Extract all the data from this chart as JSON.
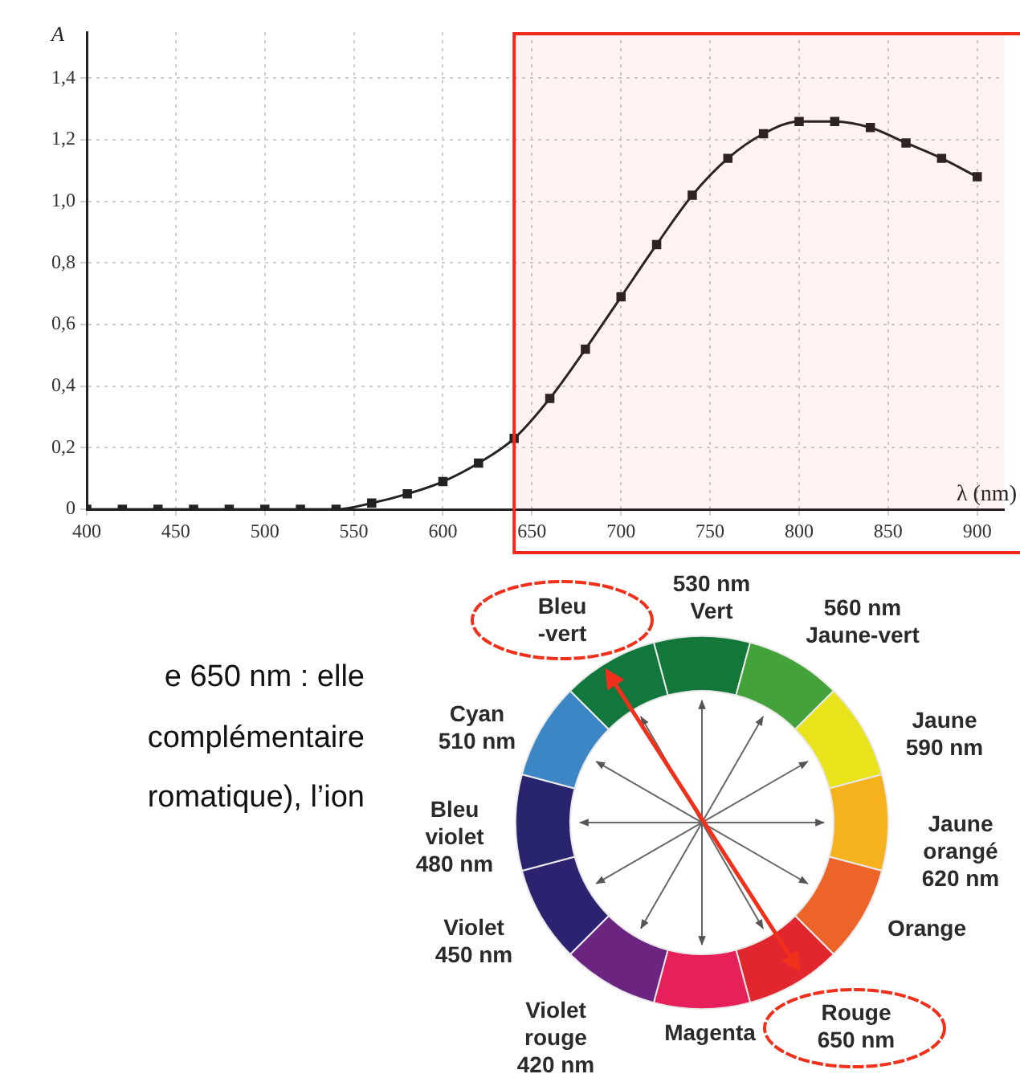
{
  "chart_data": {
    "type": "line",
    "xlabel": "λ (nm)",
    "ylabel": "A",
    "x": [
      400,
      420,
      440,
      460,
      480,
      500,
      520,
      540,
      560,
      580,
      600,
      620,
      640,
      660,
      680,
      700,
      720,
      740,
      760,
      780,
      800,
      820,
      840,
      860,
      880,
      900
    ],
    "series": [
      {
        "color": "#222222",
        "values": [
          0,
          0,
          0,
          0,
          0,
          0,
          0,
          0,
          0.02,
          0.05,
          0.09,
          0.15,
          0.23,
          0.36,
          0.52,
          0.69,
          0.86,
          1.02,
          1.14,
          1.22,
          1.26,
          1.26,
          1.24,
          1.19,
          1.14,
          1.08
        ]
      }
    ],
    "xlim": [
      400,
      915
    ],
    "xticks": [
      400,
      450,
      500,
      550,
      600,
      650,
      700,
      750,
      800,
      850,
      900
    ],
    "ylim": [
      0,
      1.55
    ],
    "yticks": [
      0,
      {
        "value": 0.2,
        "label": "0,2"
      },
      {
        "value": 0.4,
        "label": "0,4"
      },
      {
        "value": 0.6,
        "label": "0,6"
      },
      {
        "value": 0.8,
        "label": "0,8"
      },
      {
        "value": 1,
        "label": "1,0"
      },
      {
        "value": 1.2,
        "label": "1,2"
      },
      {
        "value": 1.4,
        "label": "1,4"
      }
    ],
    "bands": [
      {
        "axis": "x",
        "from": 640,
        "to": 915,
        "color": "#f02a1a"
      }
    ],
    "grid": true,
    "marker": "square",
    "line_style": "solid",
    "annotations": [
      "e 650 nm : elle",
      "complémentaire",
      "romatique), l’ion",
      "530 nm\nVert",
      "560 nm\nJaune-vert",
      "Jaune\n590 nm",
      "Jaune\norangé\n620 nm",
      "Orange",
      "Rouge\n650 nm",
      "Magenta",
      "Violet\nrouge\n420 nm",
      "Violet\n450 nm",
      "Bleu\nviolet\n480 nm",
      "Cyan\n510 nm",
      "Bleu\n-vert"
    ]
  }
}
